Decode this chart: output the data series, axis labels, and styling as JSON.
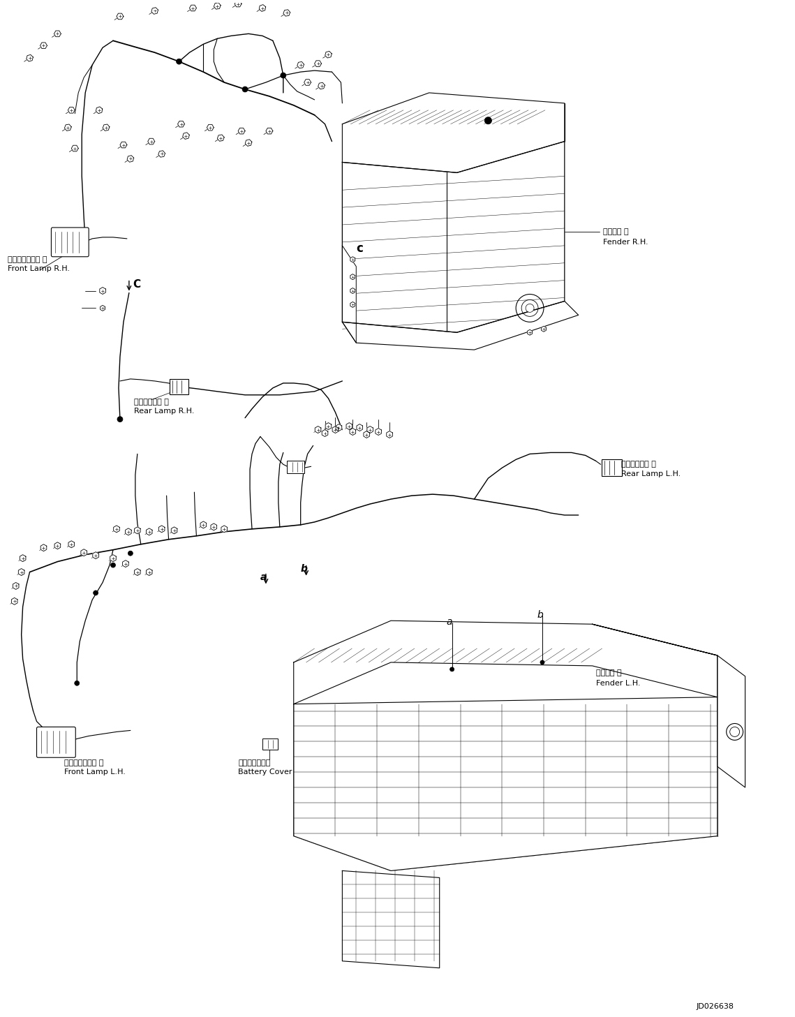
{
  "background_color": "#ffffff",
  "doc_id": "JD026638",
  "figsize": [
    11.39,
    14.57
  ],
  "dpi": 100,
  "labels": {
    "front_lamp_rh_jp": "フロントランプ 右",
    "front_lamp_rh_en": "Front Lamp R.H.",
    "rear_lamp_rh_jp": "リヤーランプ 右",
    "rear_lamp_rh_en": "Rear Lamp R.H.",
    "fender_rh_jp": "フェンダ 右",
    "fender_rh_en": "Fender R.H.",
    "rear_lamp_lh_jp": "リヤーランプ 左",
    "rear_lamp_lh_en": "Rear Lamp L.H.",
    "front_lamp_lh_jp": "フロントランプ 左",
    "front_lamp_lh_en": "Front Lamp L.H.",
    "battery_cover_jp": "バッテリカバー",
    "battery_cover_en": "Battery Cover",
    "fender_lh_jp": "フェンダ 左",
    "fender_lh_en": "Fender L.H."
  }
}
